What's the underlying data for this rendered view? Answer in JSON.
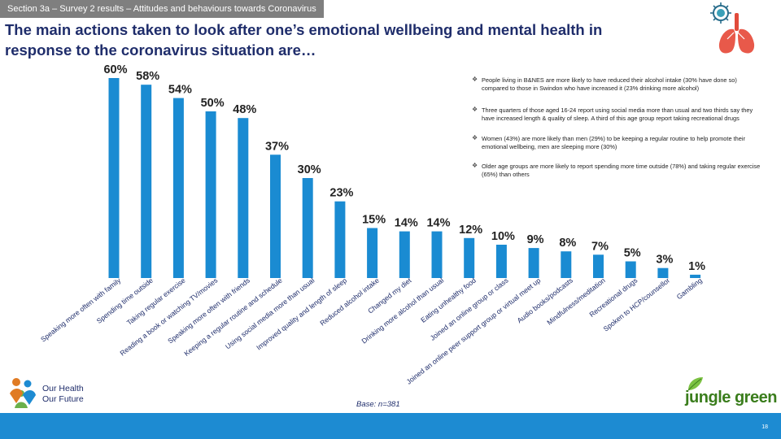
{
  "header": {
    "section_tag": "Section 3a – Survey 2 results – Attitudes and behaviours towards Coronavirus",
    "title_line1": "The main actions taken to look after one’s emotional wellbeing and mental health in",
    "title_line2": "response to the coronavirus situation are…",
    "icon": "lungs-virus-icon"
  },
  "chart_data": {
    "type": "bar",
    "title": "The main actions taken to look after one’s emotional wellbeing and mental health in response to the coronavirus situation",
    "xlabel": "",
    "ylabel": "",
    "ylim": [
      0,
      60
    ],
    "grid": false,
    "bar_color": "#1a8bd2",
    "categories": [
      "Speaking more often with family",
      "Spending time outside",
      "Taking regular exercise",
      "Reading a book or watching TV/movies",
      "Speaking more often with friends",
      "Keeping a regular routine and schedule",
      "Using social media more than usual",
      "Improved quality and length of sleep",
      "Reduced alcohol intake",
      "Changed my diet",
      "Drinking more alcohol than usual",
      "Eating unhealthy food",
      "Joined an online group or class",
      "Joined an online peer support group or virtual meet up",
      "Audio books/podcasts",
      "Mindfulness/meditation",
      "Recreational drugs",
      "Spoken to HCP/counsellor",
      "Gambling"
    ],
    "values": [
      60,
      58,
      54,
      50,
      48,
      37,
      30,
      23,
      15,
      14,
      14,
      12,
      10,
      9,
      8,
      7,
      5,
      3,
      1
    ],
    "data_labels": [
      "60%",
      "58%",
      "54%",
      "50%",
      "48%",
      "37%",
      "30%",
      "23%",
      "15%",
      "14%",
      "14%",
      "12%",
      "10%",
      "9%",
      "8%",
      "7%",
      "5%",
      "3%",
      "1%"
    ]
  },
  "bullets": [
    "People living in B&NES are more likely to have reduced their alcohol intake (30% have done so) compared to those in Swindon who have increased it (23% drinking more alcohol)",
    "Three quarters of those aged 16-24 report using social media more than usual and two thirds say they have increased length & quality of sleep. A third of this age group report taking recreational drugs",
    "Women (43%) are more likely than men (29%) to be keeping a regular routine to help promote their emotional wellbeing, men are sleeping more (30%)",
    "Older age groups are more likely to report spending more time outside (78%) and taking regular exercise (65%) than others"
  ],
  "bullet_icon": "diamond-bullet-icon",
  "base_note": "Base: n=381",
  "logos": {
    "left_line1": "Our Health",
    "left_line2": "Our Future",
    "right": "jungle green"
  },
  "footer": {
    "page_number": "18"
  }
}
